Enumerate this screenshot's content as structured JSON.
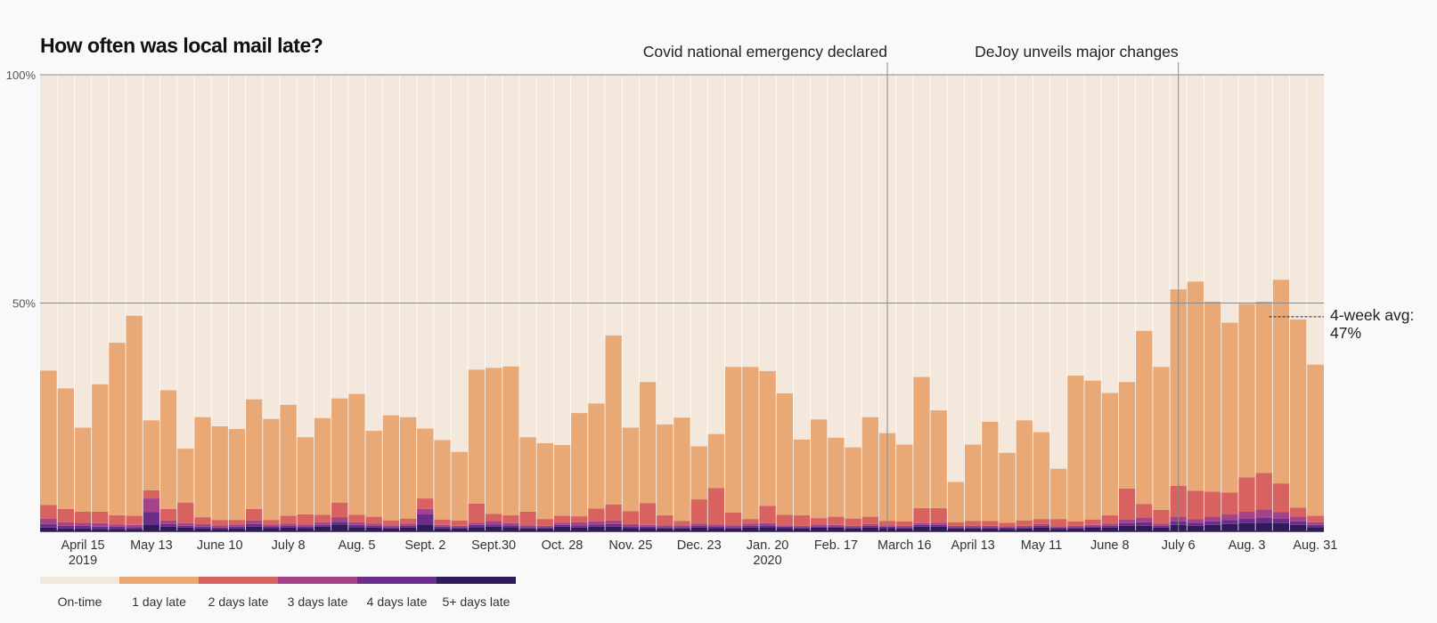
{
  "chart_data": {
    "type": "bar",
    "stacked": true,
    "title": "How often was local mail late?",
    "xlabel": "",
    "ylabel": "",
    "ylim": [
      0,
      100
    ],
    "y_ticks": [
      {
        "value": 100,
        "label": "100%"
      },
      {
        "value": 50,
        "label": "50%"
      }
    ],
    "x_tick_labels": [
      {
        "bar": 2,
        "label": "April 15",
        "sub": "2019"
      },
      {
        "bar": 6,
        "label": "May 13"
      },
      {
        "bar": 10,
        "label": "June 10"
      },
      {
        "bar": 14,
        "label": "July 8"
      },
      {
        "bar": 18,
        "label": "Aug. 5"
      },
      {
        "bar": 22,
        "label": "Sept. 2"
      },
      {
        "bar": 26,
        "label": "Sept.30"
      },
      {
        "bar": 30,
        "label": "Oct. 28"
      },
      {
        "bar": 34,
        "label": "Nov. 25"
      },
      {
        "bar": 38,
        "label": "Dec. 23"
      },
      {
        "bar": 42,
        "label": "Jan. 20",
        "sub": "2020"
      },
      {
        "bar": 46,
        "label": "Feb. 17"
      },
      {
        "bar": 50,
        "label": "March 16"
      },
      {
        "bar": 54,
        "label": "April 13"
      },
      {
        "bar": 58,
        "label": "May 11"
      },
      {
        "bar": 62,
        "label": "June 8"
      },
      {
        "bar": 66,
        "label": "July 6"
      },
      {
        "bar": 70,
        "label": "Aug. 3"
      },
      {
        "bar": 74,
        "label": "Aug. 31"
      }
    ],
    "annotations": [
      {
        "bar": 49.5,
        "label": "Covid national emergency declared"
      },
      {
        "bar": 66.5,
        "label": "DeJoy unveils major changes"
      }
    ],
    "avg_annotation": {
      "line1": "4-week avg:",
      "line2": "47%",
      "value": 47,
      "from_bar": 71.8
    },
    "legend": [
      "On-time",
      "1 day late",
      "2 days late",
      "3 days late",
      "4 days late",
      "5+ days late"
    ],
    "colors": [
      "#f4e7dc",
      "#e8a977",
      "#d8625f",
      "#a44387",
      "#6a2d8a",
      "#2f1a5a"
    ],
    "series": [
      {
        "name": "1 day late",
        "values": [
          29.4,
          26.4,
          18.4,
          27.9,
          37.8,
          43.8,
          15.3,
          26.0,
          11.8,
          21.9,
          20.5,
          19.9,
          24.0,
          22.1,
          24.3,
          16.9,
          21.2,
          22.8,
          26.5,
          18.8,
          23.0,
          22.2,
          15.3,
          17.4,
          15.0,
          29.3,
          32.0,
          32.6,
          16.3,
          16.6,
          15.5,
          22.6,
          23.0,
          37.0,
          18.3,
          26.5,
          19.9,
          22.6,
          11.6,
          11.8,
          31.9,
          33.3,
          29.5,
          26.6,
          16.6,
          21.6,
          17.3,
          15.6,
          21.8,
          19.2,
          16.8,
          28.7,
          21.4,
          8.8,
          16.7,
          21.7,
          15.3,
          21.9,
          19.0,
          11.0,
          31.9,
          30.4,
          26.8,
          23.3,
          37.9,
          31.3,
          43.0,
          45.8,
          41.6,
          37.2,
          38.0,
          37.5,
          44.6,
          41.2,
          33.1
        ]
      },
      {
        "name": "2 days late",
        "values": [
          3.0,
          2.9,
          2.4,
          2.5,
          2.0,
          2.0,
          1.8,
          2.5,
          4.5,
          1.5,
          1.2,
          1.0,
          2.5,
          1.0,
          1.7,
          2.2,
          1.6,
          3.2,
          1.6,
          1.5,
          1.1,
          1.1,
          2.3,
          1.2,
          1.2,
          4.2,
          1.5,
          1.7,
          3.0,
          1.5,
          1.5,
          1.3,
          2.8,
          3.5,
          2.8,
          4.8,
          2.2,
          1.0,
          5.3,
          8.0,
          2.8,
          1.0,
          3.8,
          2.3,
          2.3,
          1.4,
          1.8,
          1.6,
          1.6,
          1.0,
          1.0,
          3.3,
          3.2,
          0.8,
          1.1,
          1.1,
          0.8,
          1.2,
          1.1,
          1.6,
          1.0,
          1.2,
          1.8,
          6.8,
          3.0,
          3.0,
          6.8,
          6.2,
          5.5,
          4.8,
          7.5,
          8.0,
          6.3,
          2.0,
          1.4
        ]
      },
      {
        "name": "3 days late",
        "values": [
          1.2,
          0.8,
          0.7,
          0.8,
          0.5,
          0.5,
          3.0,
          0.8,
          0.6,
          0.6,
          0.5,
          0.5,
          0.8,
          0.4,
          0.5,
          0.4,
          0.6,
          1.0,
          0.6,
          0.5,
          0.4,
          0.5,
          1.2,
          0.4,
          0.3,
          0.5,
          0.8,
          0.5,
          0.4,
          0.3,
          0.5,
          0.7,
          0.7,
          0.8,
          0.5,
          0.4,
          0.4,
          0.4,
          0.5,
          0.4,
          0.4,
          0.5,
          0.5,
          0.3,
          0.3,
          0.4,
          0.3,
          0.3,
          0.4,
          0.3,
          0.3,
          0.4,
          0.5,
          0.3,
          0.3,
          0.3,
          0.3,
          0.3,
          0.4,
          0.3,
          0.3,
          0.3,
          0.5,
          0.8,
          1.0,
          0.5,
          1.0,
          0.8,
          1.0,
          1.2,
          1.5,
          1.8,
          1.4,
          1.0,
          0.6
        ]
      },
      {
        "name": "4 days late",
        "values": [
          0.8,
          0.6,
          0.6,
          0.5,
          0.5,
          0.4,
          2.7,
          0.6,
          0.4,
          0.4,
          0.3,
          0.4,
          0.6,
          0.4,
          0.4,
          0.4,
          0.4,
          0.6,
          0.5,
          0.4,
          0.3,
          0.4,
          2.2,
          0.4,
          0.3,
          0.5,
          0.5,
          0.4,
          0.3,
          0.3,
          0.4,
          0.5,
          0.5,
          0.6,
          0.4,
          0.3,
          0.3,
          0.3,
          0.4,
          0.4,
          0.3,
          0.4,
          0.4,
          0.3,
          0.3,
          0.3,
          0.3,
          0.3,
          0.4,
          0.3,
          0.3,
          0.4,
          0.4,
          0.3,
          0.3,
          0.3,
          0.3,
          0.3,
          0.4,
          0.3,
          0.3,
          0.3,
          0.4,
          0.6,
          0.8,
          0.4,
          0.8,
          0.7,
          0.8,
          0.9,
          1.0,
          1.1,
          1.0,
          0.8,
          0.5
        ]
      },
      {
        "name": "5+ days late",
        "values": [
          0.8,
          0.6,
          0.6,
          0.5,
          0.5,
          0.5,
          1.5,
          1.0,
          0.8,
          0.6,
          0.5,
          0.6,
          1.0,
          0.7,
          0.8,
          0.7,
          1.0,
          1.5,
          0.9,
          0.8,
          0.6,
          0.8,
          1.5,
          0.6,
          0.6,
          0.9,
          1.0,
          0.9,
          0.6,
          0.6,
          1.0,
          0.8,
          1.0,
          1.0,
          0.7,
          0.7,
          0.6,
          0.6,
          0.8,
          0.7,
          0.6,
          0.8,
          0.9,
          0.7,
          0.6,
          0.8,
          0.8,
          0.6,
          0.8,
          0.7,
          0.6,
          1.0,
          1.0,
          0.6,
          0.6,
          0.6,
          0.5,
          0.6,
          0.8,
          0.5,
          0.6,
          0.8,
          0.8,
          1.2,
          1.2,
          0.8,
          1.4,
          1.2,
          1.4,
          1.6,
          1.8,
          1.9,
          1.8,
          1.4,
          0.9
        ]
      }
    ]
  }
}
